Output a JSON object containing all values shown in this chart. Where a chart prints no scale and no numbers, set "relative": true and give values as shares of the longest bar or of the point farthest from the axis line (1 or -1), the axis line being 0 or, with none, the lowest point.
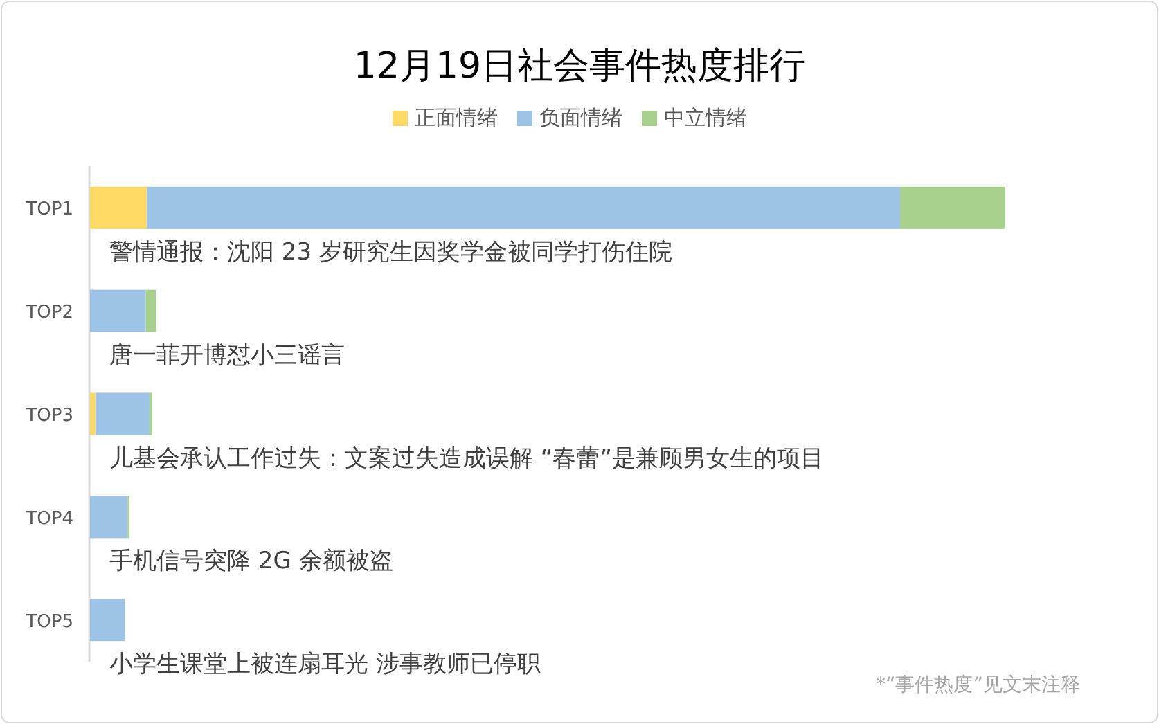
{
  "chart_data": {
    "type": "bar",
    "orientation": "horizontal",
    "stacked": true,
    "relative": true,
    "title": "12月19日社会事件热度排行",
    "categories": [
      "TOP1",
      "TOP2",
      "TOP3",
      "TOP4",
      "TOP5"
    ],
    "series": [
      {
        "name": "正面情绪",
        "color": "#ffd966",
        "values": [
          0.062,
          0,
          0.006,
          0,
          0
        ]
      },
      {
        "name": "负面情绪",
        "color": "#9dc3e6",
        "values": [
          0.823,
          0.061,
          0.059,
          0.041,
          0.038
        ]
      },
      {
        "name": "中立情绪",
        "color": "#a9d18e",
        "values": [
          0.115,
          0.011,
          0.003,
          0.002,
          0
        ]
      }
    ],
    "legend": "top",
    "annotations": [
      "警情通报：沈阳 23 岁研究生因奖学金被同学打伤住院",
      "唐一菲开博怼小三谣言",
      "儿基会承认工作过失：文案过失造成误解  “春蕾”是兼顾男女生的项目",
      "手机信号突降 2G 余额被盗",
      "小学生课堂上被连扇耳光  涉事教师已停职",
      "*“事件热度”见文末注释"
    ]
  }
}
